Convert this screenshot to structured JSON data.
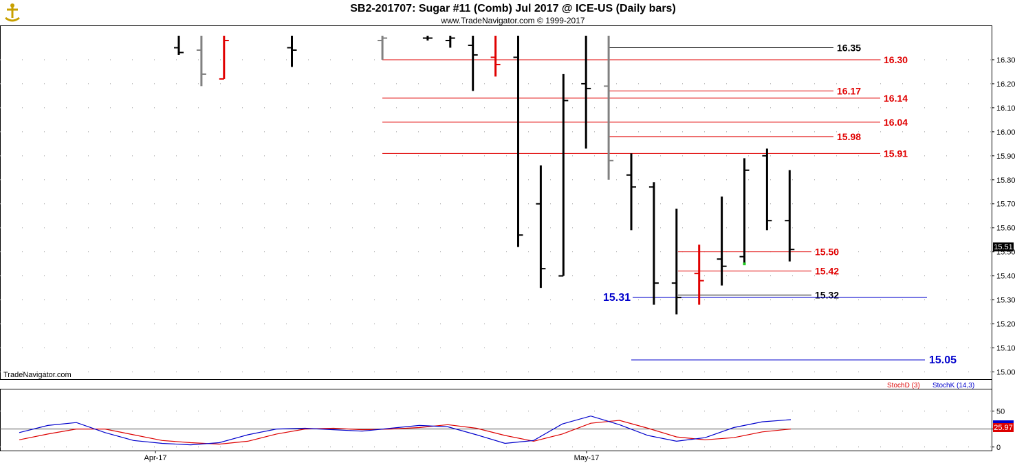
{
  "header": {
    "title": "SB2-201707:  Sugar #11 (Comb) Jul 2017 @ ICE-US  (Daily bars)",
    "subtitle": "www.TradeNavigator.com © 1999-2017"
  },
  "watermark": "TradeNavigator.com",
  "logo_icon": "navigator-logo-icon",
  "last_price_label": "15.51",
  "stoch_last_label": "25.97",
  "legend": {
    "stochD": "StochD (3)",
    "stochK": "StochK (14,3)"
  },
  "colors": {
    "up_bar": "#000000",
    "gray_bar": "#808080",
    "red_bar": "#e00000",
    "level_red": "#e00000",
    "level_black": "#000000",
    "level_blue": "#0000cc",
    "stochD": "#dd0000",
    "stochK": "#0000cc",
    "grid_dot": "#9a9a9a"
  },
  "chart_data": [
    {
      "type": "ohlc",
      "title": "SB2-201707:  Sugar #11 (Comb) Jul 2017 @ ICE-US  (Daily bars)",
      "ylim": [
        14.97,
        16.44
      ],
      "y_ticks": [
        "16.30",
        "16.20",
        "16.10",
        "16.00",
        "15.90",
        "15.80",
        "15.70",
        "15.60",
        "15.50",
        "15.40",
        "15.30",
        "15.20",
        "15.10",
        "15.00"
      ],
      "x_labels": [
        "Apr-17",
        "May-17"
      ],
      "bars": [
        {
          "i": 0,
          "h": 16.4,
          "l": 16.32,
          "o": 16.35,
          "c": 16.33,
          "color": "black"
        },
        {
          "i": 1,
          "h": 16.4,
          "l": 16.19,
          "o": 16.34,
          "c": 16.24,
          "color": "gray"
        },
        {
          "i": 2,
          "h": 16.4,
          "l": 16.22,
          "o": 16.22,
          "c": 16.38,
          "color": "red"
        },
        {
          "i": 5,
          "h": 16.4,
          "l": 16.27,
          "o": 16.35,
          "c": 16.34,
          "color": "black"
        },
        {
          "i": 9,
          "h": 16.4,
          "l": 16.3,
          "o": 16.38,
          "c": 16.39,
          "color": "gray"
        },
        {
          "i": 11,
          "h": 16.4,
          "l": 16.38,
          "o": 16.39,
          "c": 16.39,
          "color": "black"
        },
        {
          "i": 12,
          "h": 16.4,
          "l": 16.35,
          "o": 16.38,
          "c": 16.39,
          "color": "black"
        },
        {
          "i": 13,
          "h": 16.4,
          "l": 16.17,
          "o": 16.36,
          "c": 16.32,
          "color": "black"
        },
        {
          "i": 14,
          "h": 16.4,
          "l": 16.23,
          "o": 16.31,
          "c": 16.28,
          "color": "red"
        },
        {
          "i": 15,
          "h": 16.4,
          "l": 15.52,
          "o": 16.31,
          "c": 15.57,
          "color": "black"
        },
        {
          "i": 16,
          "h": 15.86,
          "l": 15.35,
          "o": 15.7,
          "c": 15.43,
          "color": "black"
        },
        {
          "i": 17,
          "h": 16.24,
          "l": 15.4,
          "o": 15.4,
          "c": 16.13,
          "color": "black"
        },
        {
          "i": 18,
          "h": 16.4,
          "l": 15.93,
          "o": 16.2,
          "c": 16.18,
          "color": "black"
        },
        {
          "i": 19,
          "h": 16.4,
          "l": 15.8,
          "o": 16.19,
          "c": 15.88,
          "color": "gray"
        },
        {
          "i": 20,
          "h": 15.91,
          "l": 15.59,
          "o": 15.82,
          "c": 15.77,
          "color": "black"
        },
        {
          "i": 21,
          "h": 15.79,
          "l": 15.28,
          "o": 15.77,
          "c": 15.37,
          "color": "black"
        },
        {
          "i": 22,
          "h": 15.68,
          "l": 15.24,
          "o": 15.37,
          "c": 15.31,
          "color": "black"
        },
        {
          "i": 23,
          "h": 15.53,
          "l": 15.28,
          "o": 15.41,
          "c": 15.38,
          "color": "red"
        },
        {
          "i": 24,
          "h": 15.73,
          "l": 15.36,
          "o": 15.47,
          "c": 15.44,
          "color": "black"
        },
        {
          "i": 25,
          "h": 15.89,
          "l": 15.45,
          "o": 15.48,
          "c": 15.84,
          "color": "black"
        },
        {
          "i": 26,
          "h": 15.93,
          "l": 15.59,
          "o": 15.9,
          "c": 15.63,
          "color": "black"
        },
        {
          "i": 27,
          "h": 15.84,
          "l": 15.46,
          "o": 15.63,
          "c": 15.51,
          "color": "black"
        }
      ],
      "levels": [
        {
          "value": 16.35,
          "label": "16.35",
          "color": "black",
          "from_i": 19,
          "to_i": 30
        },
        {
          "value": 16.3,
          "label": "16.30",
          "color": "red",
          "from_i": 9,
          "to_i": 32
        },
        {
          "value": 16.17,
          "label": "16.17",
          "color": "red",
          "from_i": 19,
          "to_i": 30
        },
        {
          "value": 16.14,
          "label": "16.14",
          "color": "red",
          "from_i": 9,
          "to_i": 32
        },
        {
          "value": 16.04,
          "label": "16.04",
          "color": "red",
          "from_i": 9,
          "to_i": 32
        },
        {
          "value": 15.98,
          "label": "15.98",
          "color": "red",
          "from_i": 19,
          "to_i": 30
        },
        {
          "value": 15.91,
          "label": "15.91",
          "color": "red",
          "from_i": 9,
          "to_i": 32
        },
        {
          "value": 15.5,
          "label": "15.50",
          "color": "red",
          "from_i": 22,
          "to_i": 29
        },
        {
          "value": 15.42,
          "label": "15.42",
          "color": "red",
          "from_i": 22,
          "to_i": 29
        },
        {
          "value": 15.32,
          "label": "15.32",
          "color": "black",
          "from_i": 22,
          "to_i": 29
        },
        {
          "value": 15.31,
          "label": "15.31",
          "color": "blue",
          "from_i": 20,
          "to_i": 32
        },
        {
          "value": 15.05,
          "label": "15.05",
          "color": "blue",
          "from_i": 20,
          "to_i": 32
        }
      ]
    },
    {
      "type": "line",
      "title": "",
      "ylim": [
        -5,
        80
      ],
      "y_ticks": [
        "50",
        "25",
        "0"
      ],
      "series": [
        {
          "name": "StochD (3)",
          "color": "#dd0000",
          "values": [
            10,
            18,
            25,
            25,
            17,
            9,
            6,
            4,
            8,
            18,
            25,
            26,
            24,
            25,
            27,
            31,
            26,
            16,
            8,
            18,
            33,
            37,
            26,
            14,
            10,
            13,
            21,
            25
          ]
        },
        {
          "name": "StochK (14,3)",
          "color": "#0000cc",
          "values": [
            20,
            30,
            34,
            20,
            9,
            5,
            3,
            6,
            17,
            25,
            26,
            24,
            22,
            26,
            30,
            28,
            17,
            5,
            9,
            32,
            43,
            31,
            16,
            8,
            13,
            27,
            35,
            38
          ]
        }
      ]
    }
  ]
}
